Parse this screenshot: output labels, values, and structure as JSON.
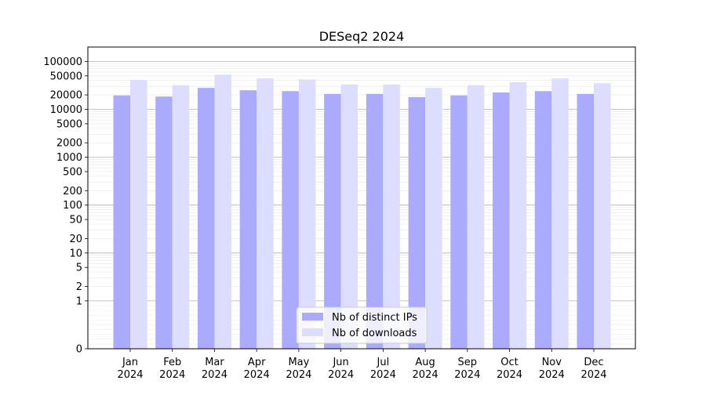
{
  "chart_data": {
    "type": "bar",
    "title": "DESeq2 2024",
    "xlabel": "",
    "ylabel": "",
    "yscale": "symlog",
    "ylim": [
      0,
      200000
    ],
    "categories": [
      "Jan\n2024",
      "Feb\n2024",
      "Mar\n2024",
      "Apr\n2024",
      "May\n2024",
      "Jun\n2024",
      "Jul\n2024",
      "Aug\n2024",
      "Sep\n2024",
      "Oct\n2024",
      "Nov\n2024",
      "Dec\n2024"
    ],
    "yticks": [
      0,
      1,
      2,
      5,
      10,
      20,
      50,
      100,
      200,
      500,
      1000,
      2000,
      5000,
      10000,
      20000,
      50000,
      100000
    ],
    "ytick_labels": [
      "0",
      "1",
      "2",
      "5",
      "10",
      "20",
      "50",
      "100",
      "200",
      "500",
      "1000",
      "2000",
      "5000",
      "10000",
      "20000",
      "50000",
      "100000"
    ],
    "series": [
      {
        "name": "Nb of distinct IPs",
        "color": "#aaaaff",
        "values": [
          19500,
          18500,
          28000,
          25000,
          24000,
          21000,
          21000,
          18000,
          19500,
          22500,
          24000,
          21000
        ]
      },
      {
        "name": "Nb of downloads",
        "color": "#ddddff",
        "values": [
          41000,
          32000,
          53000,
          44000,
          42000,
          33000,
          33000,
          28000,
          32000,
          37000,
          44000,
          35000
        ]
      }
    ],
    "legend": "lower-center",
    "grid": true
  }
}
